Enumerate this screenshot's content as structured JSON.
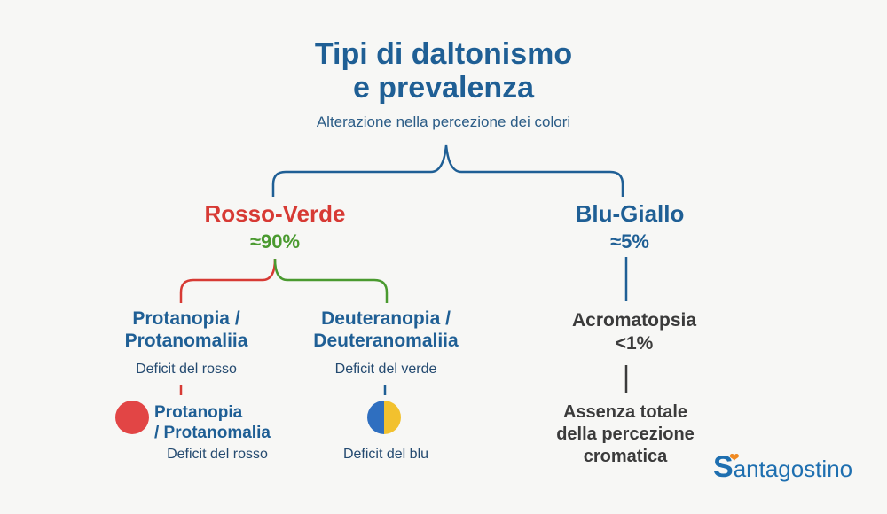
{
  "header": {
    "title_line1": "Tipi di daltonismo",
    "title_line2": "e prevalenza",
    "subtitle": "Alterazione nella percezione dei colori"
  },
  "rosso_verde": {
    "label": "Rosso-Verde",
    "prevalence": "≈90%",
    "protanopia": {
      "title_line1": "Protanopia /",
      "title_line2": "Protanomaliia",
      "desc": "Deficit del rosso"
    },
    "deuteranopia": {
      "title_line1": "Deuteranopia /",
      "title_line2": "Deuteranomaliia",
      "desc": "Deficit del verde"
    },
    "protanopia_detail": {
      "title_line1": "Protanopia",
      "title_line2": "/ Protanomalia",
      "desc": "Deficit del rosso"
    },
    "blue_detail": {
      "desc": "Deficit del blu"
    }
  },
  "blu_giallo": {
    "label": "Blu-Giallo",
    "prevalence": "≈5%",
    "acromatopsia": {
      "title": "Acromatopsia",
      "prevalence": "<1%"
    },
    "assenza": {
      "line1": "Assenza totale",
      "line2": "della percezione",
      "line3": "cromatica"
    }
  },
  "logo": {
    "initial": "S",
    "rest": "antagostino"
  },
  "colors": {
    "blue": "#1f5f95",
    "red": "#d73a34",
    "green": "#4a9a2f",
    "dark": "#3b3b3b",
    "logo_orange": "#f08a22"
  }
}
